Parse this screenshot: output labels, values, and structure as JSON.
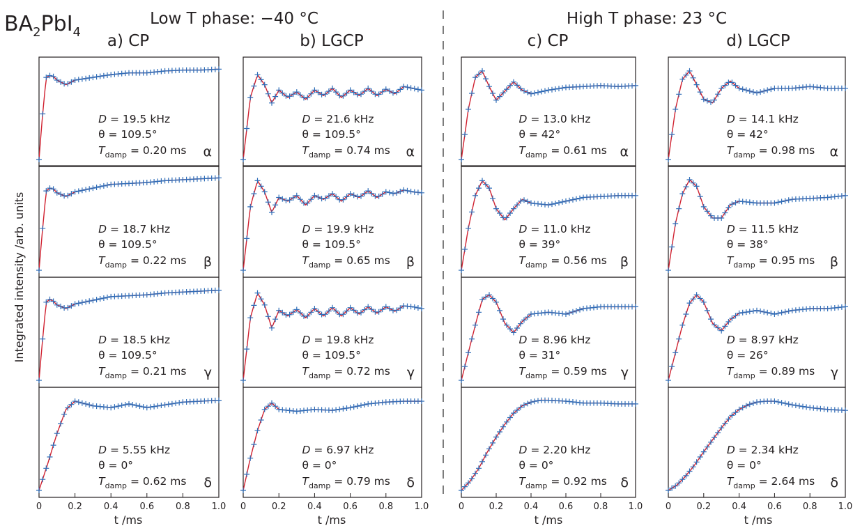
{
  "figure": {
    "compound": "BA₂PbI₄",
    "compound_parts": [
      "BA",
      "2",
      "PbI",
      "4"
    ],
    "phase_titles": [
      "Low T phase: −40 °C",
      "High T phase: 23 °C"
    ],
    "y_axis_label": "Integrated intensity /arb. units",
    "x_axis_label": "t /ms",
    "x_ticks": [
      "0",
      "0.2",
      "0.4",
      "0.6",
      "0.8",
      "1.0"
    ],
    "param_labels": {
      "D": "D",
      "theta": "θ",
      "T": "T",
      "T_sub": "damp"
    },
    "units": {
      "D": "kHz",
      "T": "ms"
    }
  },
  "colors": {
    "markers": "#2e6db8",
    "fit": "#d0202f",
    "axis": "#231f20",
    "divider": "#444444"
  },
  "chart_data": [
    {
      "type": "line",
      "column_title": "a) CP",
      "xlim": [
        0,
        1.0
      ],
      "series_style": [
        {
          "kind": "marker",
          "marker": "+"
        },
        {
          "kind": "fit"
        }
      ],
      "panels": [
        {
          "site": "α",
          "D": "19.5",
          "theta": "109.5°",
          "T_damp": "0.20",
          "x": [
            0,
            0.02,
            0.04,
            0.06,
            0.08,
            0.1,
            0.15,
            0.2,
            0.3,
            0.4,
            0.5,
            0.6,
            0.7,
            0.8,
            0.9,
            1.0
          ],
          "y": [
            0.0,
            0.5,
            0.9,
            0.92,
            0.91,
            0.87,
            0.82,
            0.87,
            0.9,
            0.93,
            0.95,
            0.95,
            0.97,
            0.98,
            0.98,
            0.99
          ]
        },
        {
          "site": "β",
          "D": "18.7",
          "theta": "109.5°",
          "T_damp": "0.22",
          "x": [
            0,
            0.02,
            0.04,
            0.06,
            0.08,
            0.1,
            0.15,
            0.2,
            0.3,
            0.4,
            0.5,
            0.6,
            0.7,
            0.8,
            0.9,
            1.0
          ],
          "y": [
            0.0,
            0.45,
            0.85,
            0.88,
            0.87,
            0.83,
            0.79,
            0.84,
            0.88,
            0.92,
            0.93,
            0.94,
            0.96,
            0.97,
            0.98,
            0.99
          ]
        },
        {
          "site": "γ",
          "D": "18.5",
          "theta": "109.5°",
          "T_damp": "0.21",
          "x": [
            0,
            0.02,
            0.04,
            0.06,
            0.08,
            0.1,
            0.15,
            0.2,
            0.3,
            0.4,
            0.5,
            0.6,
            0.7,
            0.8,
            0.9,
            1.0
          ],
          "y": [
            0.0,
            0.45,
            0.85,
            0.88,
            0.86,
            0.82,
            0.78,
            0.83,
            0.87,
            0.91,
            0.92,
            0.93,
            0.95,
            0.96,
            0.97,
            0.98
          ]
        },
        {
          "site": "δ",
          "D": "5.55",
          "theta": "0°",
          "T_damp": "0.62",
          "x": [
            0,
            0.05,
            0.1,
            0.15,
            0.2,
            0.3,
            0.4,
            0.5,
            0.6,
            0.7,
            0.8,
            0.9,
            1.0
          ],
          "y": [
            0.0,
            0.3,
            0.62,
            0.88,
            0.97,
            0.92,
            0.9,
            0.94,
            0.9,
            0.93,
            0.96,
            0.97,
            0.98
          ]
        }
      ]
    },
    {
      "type": "line",
      "column_title": "b) LGCP",
      "xlim": [
        0,
        1.0
      ],
      "series_style": [
        {
          "kind": "marker",
          "marker": "+"
        },
        {
          "kind": "fit"
        }
      ],
      "panels": [
        {
          "site": "α",
          "D": "21.6",
          "theta": "109.5°",
          "T_damp": "0.74",
          "x": [
            0,
            0.04,
            0.08,
            0.12,
            0.16,
            0.2,
            0.25,
            0.3,
            0.35,
            0.4,
            0.45,
            0.5,
            0.55,
            0.6,
            0.65,
            0.7,
            0.75,
            0.8,
            0.85,
            0.9,
            0.95,
            1.0
          ],
          "y": [
            0.0,
            0.68,
            0.93,
            0.82,
            0.62,
            0.76,
            0.68,
            0.74,
            0.66,
            0.76,
            0.7,
            0.78,
            0.68,
            0.76,
            0.7,
            0.78,
            0.7,
            0.77,
            0.72,
            0.8,
            0.78,
            0.76
          ]
        },
        {
          "site": "β",
          "D": "19.9",
          "theta": "109.5°",
          "T_damp": "0.65",
          "x": [
            0,
            0.04,
            0.08,
            0.12,
            0.16,
            0.2,
            0.25,
            0.3,
            0.35,
            0.4,
            0.45,
            0.5,
            0.55,
            0.6,
            0.65,
            0.7,
            0.75,
            0.8,
            0.85,
            0.9,
            0.95,
            1.0
          ],
          "y": [
            0.0,
            0.68,
            0.96,
            0.84,
            0.62,
            0.78,
            0.74,
            0.8,
            0.7,
            0.8,
            0.76,
            0.82,
            0.74,
            0.82,
            0.78,
            0.85,
            0.78,
            0.84,
            0.82,
            0.86,
            0.84,
            0.83
          ]
        },
        {
          "site": "γ",
          "D": "19.8",
          "theta": "109.5°",
          "T_damp": "0.72",
          "x": [
            0,
            0.04,
            0.08,
            0.12,
            0.16,
            0.2,
            0.25,
            0.3,
            0.35,
            0.4,
            0.45,
            0.5,
            0.55,
            0.6,
            0.65,
            0.7,
            0.75,
            0.8,
            0.85,
            0.9,
            0.95,
            1.0
          ],
          "y": [
            0.0,
            0.68,
            0.95,
            0.82,
            0.57,
            0.76,
            0.7,
            0.77,
            0.68,
            0.78,
            0.7,
            0.79,
            0.7,
            0.79,
            0.72,
            0.8,
            0.73,
            0.8,
            0.75,
            0.81,
            0.8,
            0.78
          ]
        },
        {
          "site": "δ",
          "D": "6.97",
          "theta": "0°",
          "T_damp": "0.79",
          "x": [
            0,
            0.04,
            0.08,
            0.12,
            0.16,
            0.2,
            0.3,
            0.4,
            0.5,
            0.6,
            0.7,
            0.8,
            0.9,
            1.0
          ],
          "y": [
            0.0,
            0.35,
            0.65,
            0.88,
            0.95,
            0.88,
            0.86,
            0.88,
            0.87,
            0.9,
            0.94,
            0.96,
            0.97,
            0.97
          ]
        }
      ]
    },
    {
      "type": "line",
      "column_title": "c) CP",
      "xlim": [
        0,
        1.0
      ],
      "series_style": [
        {
          "kind": "marker",
          "marker": "+"
        },
        {
          "kind": "fit"
        }
      ],
      "panels": [
        {
          "site": "α",
          "D": "13.0",
          "theta": "42°",
          "T_damp": "0.61",
          "x": [
            0,
            0.04,
            0.08,
            0.12,
            0.16,
            0.2,
            0.25,
            0.3,
            0.35,
            0.4,
            0.5,
            0.6,
            0.7,
            0.8,
            0.9,
            1.0
          ],
          "y": [
            0.0,
            0.55,
            0.9,
            0.97,
            0.8,
            0.65,
            0.75,
            0.85,
            0.76,
            0.72,
            0.76,
            0.79,
            0.8,
            0.81,
            0.8,
            0.81
          ]
        },
        {
          "site": "β",
          "D": "11.0",
          "theta": "39°",
          "T_damp": "0.56",
          "x": [
            0,
            0.04,
            0.08,
            0.12,
            0.16,
            0.2,
            0.25,
            0.3,
            0.35,
            0.4,
            0.5,
            0.6,
            0.7,
            0.8,
            0.9,
            1.0
          ],
          "y": [
            0.0,
            0.45,
            0.8,
            0.96,
            0.88,
            0.66,
            0.54,
            0.66,
            0.76,
            0.72,
            0.7,
            0.74,
            0.78,
            0.79,
            0.8,
            0.8
          ]
        },
        {
          "site": "γ",
          "D": "8.96",
          "theta": "31°",
          "T_damp": "0.59",
          "x": [
            0,
            0.04,
            0.08,
            0.12,
            0.16,
            0.2,
            0.25,
            0.3,
            0.35,
            0.4,
            0.5,
            0.6,
            0.7,
            0.8,
            0.9,
            1.0
          ],
          "y": [
            0.0,
            0.3,
            0.6,
            0.88,
            0.93,
            0.85,
            0.62,
            0.52,
            0.64,
            0.72,
            0.74,
            0.72,
            0.78,
            0.8,
            0.8,
            0.8
          ]
        },
        {
          "site": "δ",
          "D": "2.20",
          "theta": "0°",
          "T_damp": "0.92",
          "x": [
            0,
            0.05,
            0.1,
            0.15,
            0.2,
            0.25,
            0.3,
            0.35,
            0.4,
            0.45,
            0.5,
            0.6,
            0.7,
            0.8,
            0.9,
            1.0
          ],
          "y": [
            0.0,
            0.1,
            0.24,
            0.42,
            0.58,
            0.72,
            0.84,
            0.92,
            0.96,
            0.98,
            0.98,
            0.97,
            0.95,
            0.95,
            0.94,
            0.94
          ]
        }
      ]
    },
    {
      "type": "line",
      "column_title": "d) LGCP",
      "xlim": [
        0,
        1.0
      ],
      "series_style": [
        {
          "kind": "marker",
          "marker": "+"
        },
        {
          "kind": "fit"
        }
      ],
      "panels": [
        {
          "site": "α",
          "D": "14.1",
          "theta": "42°",
          "T_damp": "0.98",
          "x": [
            0,
            0.04,
            0.08,
            0.12,
            0.16,
            0.2,
            0.25,
            0.3,
            0.35,
            0.4,
            0.5,
            0.6,
            0.7,
            0.8,
            0.9,
            1.0
          ],
          "y": [
            0.0,
            0.55,
            0.88,
            0.97,
            0.82,
            0.66,
            0.62,
            0.78,
            0.86,
            0.78,
            0.73,
            0.78,
            0.78,
            0.8,
            0.78,
            0.78
          ]
        },
        {
          "site": "β",
          "D": "11.5",
          "theta": "38°",
          "T_damp": "0.95",
          "x": [
            0,
            0.04,
            0.08,
            0.12,
            0.16,
            0.2,
            0.25,
            0.3,
            0.35,
            0.4,
            0.5,
            0.6,
            0.7,
            0.8,
            0.9,
            1.0
          ],
          "y": [
            0.0,
            0.5,
            0.82,
            0.97,
            0.9,
            0.68,
            0.56,
            0.56,
            0.7,
            0.74,
            0.72,
            0.72,
            0.76,
            0.77,
            0.78,
            0.8
          ]
        },
        {
          "site": "γ",
          "D": "8.97",
          "theta": "26°",
          "T_damp": "0.89",
          "x": [
            0,
            0.04,
            0.08,
            0.12,
            0.16,
            0.2,
            0.25,
            0.3,
            0.35,
            0.4,
            0.5,
            0.6,
            0.7,
            0.8,
            0.9,
            1.0
          ],
          "y": [
            0.0,
            0.3,
            0.6,
            0.84,
            0.93,
            0.85,
            0.62,
            0.54,
            0.66,
            0.73,
            0.76,
            0.72,
            0.76,
            0.78,
            0.78,
            0.8
          ]
        },
        {
          "site": "δ",
          "D": "2.34",
          "theta": "0°",
          "T_damp": "2.64",
          "x": [
            0,
            0.05,
            0.1,
            0.15,
            0.2,
            0.25,
            0.3,
            0.35,
            0.4,
            0.45,
            0.5,
            0.55,
            0.6,
            0.7,
            0.8,
            0.9,
            1.0
          ],
          "y": [
            0.0,
            0.06,
            0.16,
            0.28,
            0.42,
            0.55,
            0.68,
            0.8,
            0.88,
            0.93,
            0.96,
            0.97,
            0.97,
            0.93,
            0.9,
            0.88,
            0.87
          ]
        }
      ]
    }
  ]
}
